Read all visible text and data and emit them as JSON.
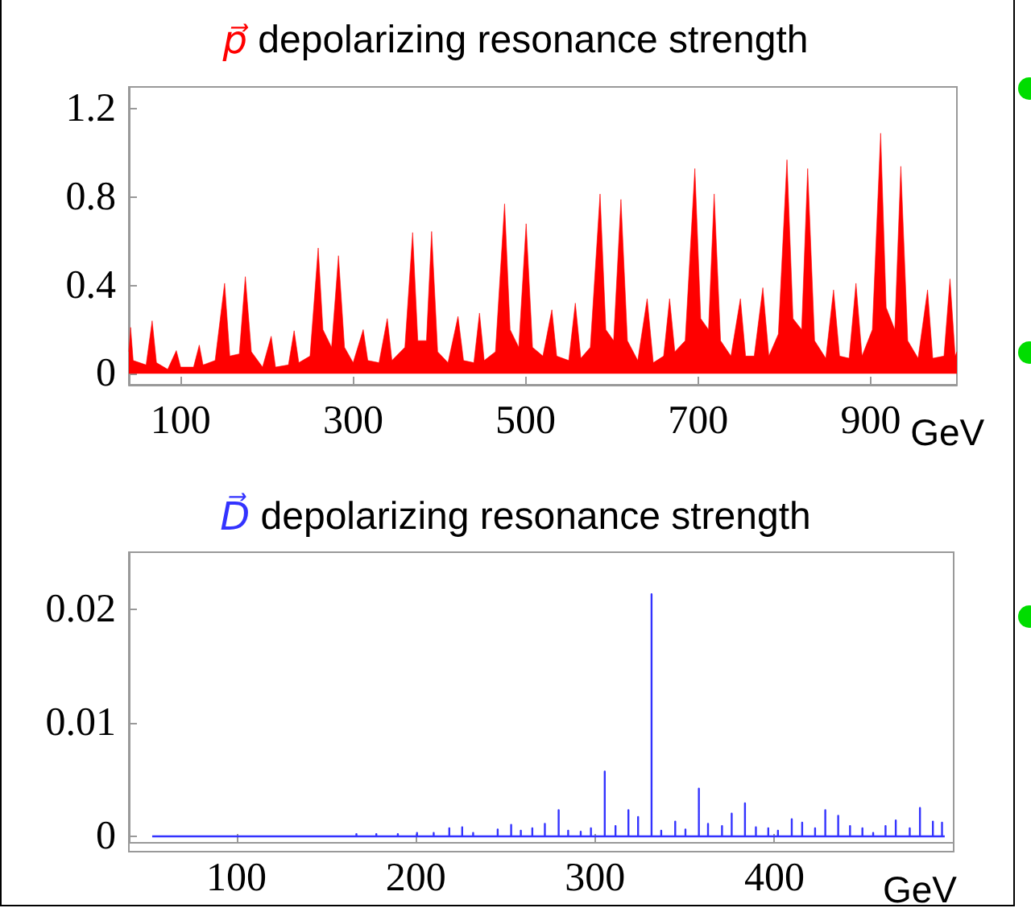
{
  "chart_data": [
    {
      "type": "area",
      "title": "p⃗ depolarizing resonance strength",
      "color": "#ff0000",
      "xlabel": "GeV",
      "xlim": [
        40,
        1000
      ],
      "xticks": [
        100,
        300,
        500,
        700,
        900
      ],
      "ylim": [
        -0.05,
        1.3
      ],
      "yticks": [
        0,
        0.4,
        0.8,
        1.2
      ],
      "x": [
        40,
        42,
        45,
        60,
        67,
        72,
        85,
        95,
        100,
        115,
        121.6,
        126,
        140,
        151,
        157,
        168,
        175,
        182,
        195,
        205,
        210,
        225,
        231.6,
        237,
        250,
        259.5,
        265,
        275,
        283,
        290,
        300,
        311.7,
        317,
        330,
        339.6,
        345,
        360,
        369,
        375,
        385,
        391,
        398,
        410,
        421.6,
        428,
        440,
        446.5,
        452,
        465,
        475.6,
        482,
        492,
        500.6,
        508,
        520,
        530.4,
        536,
        550,
        557.6,
        564,
        575,
        586.3,
        593,
        602,
        610.5,
        618,
        630,
        640.9,
        648,
        660,
        666.9,
        673,
        685,
        696.2,
        703,
        712,
        718.6,
        726,
        738,
        749,
        755,
        765,
        775,
        782,
        793,
        803,
        810,
        820,
        827,
        835,
        848,
        857,
        864,
        875,
        883,
        890,
        902,
        911.6,
        918,
        928,
        935,
        943,
        955,
        966,
        972,
        985,
        992,
        998,
        1000
      ],
      "values": [
        0.1,
        0.21,
        0.06,
        0.04,
        0.24,
        0.05,
        0.02,
        0.105,
        0.03,
        0.03,
        0.13,
        0.04,
        0.06,
        0.41,
        0.08,
        0.09,
        0.44,
        0.1,
        0.03,
        0.17,
        0.03,
        0.04,
        0.195,
        0.05,
        0.08,
        0.57,
        0.2,
        0.12,
        0.535,
        0.12,
        0.05,
        0.2,
        0.06,
        0.05,
        0.25,
        0.06,
        0.12,
        0.64,
        0.15,
        0.15,
        0.645,
        0.1,
        0.05,
        0.26,
        0.06,
        0.05,
        0.275,
        0.06,
        0.1,
        0.77,
        0.2,
        0.12,
        0.68,
        0.12,
        0.08,
        0.29,
        0.08,
        0.06,
        0.32,
        0.07,
        0.12,
        0.815,
        0.2,
        0.15,
        0.79,
        0.15,
        0.06,
        0.34,
        0.05,
        0.08,
        0.34,
        0.1,
        0.15,
        0.93,
        0.25,
        0.2,
        0.815,
        0.15,
        0.08,
        0.34,
        0.08,
        0.08,
        0.39,
        0.08,
        0.18,
        0.97,
        0.25,
        0.2,
        0.93,
        0.15,
        0.07,
        0.38,
        0.08,
        0.07,
        0.41,
        0.08,
        0.2,
        1.09,
        0.3,
        0.2,
        0.94,
        0.15,
        0.07,
        0.38,
        0.07,
        0.08,
        0.43,
        0.08,
        0.1
      ]
    },
    {
      "type": "line",
      "title": "D⃗ depolarizing resonance strength",
      "color": "#3333ff",
      "xlabel": "GeV",
      "xlim": [
        40,
        500
      ],
      "xticks": [
        100,
        200,
        300,
        400
      ],
      "ylim": [
        -0.0005,
        0.025
      ],
      "yticks": [
        0,
        0.01,
        0.02
      ],
      "x": [
        53,
        60,
        60,
        60,
        75,
        75,
        75,
        90,
        90,
        90,
        105,
        105,
        105,
        118,
        118,
        118,
        130,
        130,
        130,
        142,
        142,
        142,
        155,
        155,
        155,
        166.9,
        166.9,
        166.9,
        178,
        178,
        178,
        190,
        190,
        190,
        200.7,
        200.7,
        200.7,
        210,
        210,
        210,
        218.7,
        218.7,
        218.7,
        225.9,
        225.9,
        225.9,
        232,
        232,
        232,
        245.7,
        245.7,
        245.7,
        253.2,
        253.2,
        253.2,
        258.6,
        258.6,
        258.6,
        265,
        265,
        265,
        272,
        272,
        272,
        279.7,
        279.7,
        279.7,
        285,
        285,
        285,
        292,
        292,
        292,
        297.7,
        297.7,
        297.7,
        305.4,
        305.4,
        305.4,
        311.4,
        311.4,
        311.4,
        318.6,
        318.6,
        318.6,
        324,
        324,
        324,
        331.5,
        331.5,
        331.5,
        336.9,
        336.9,
        336.9,
        344.7,
        344.7,
        344.7,
        350.4,
        350.4,
        350.4,
        357.9,
        357.9,
        357.9,
        363,
        363,
        363,
        370.8,
        370.8,
        370.8,
        376.2,
        376.2,
        376.2,
        383.6,
        383.6,
        383.6,
        389.7,
        389.7,
        389.7,
        396.6,
        396.6,
        396.6,
        402,
        402,
        402,
        409.7,
        409.7,
        409.7,
        415.5,
        415.5,
        415.5,
        422.7,
        422.7,
        422.7,
        428.4,
        428.4,
        428.4,
        435.6,
        435.6,
        435.6,
        442.2,
        442.2,
        442.2,
        449.1,
        449.1,
        449.1,
        455.1,
        455.1,
        455.1,
        462,
        462,
        462,
        467.7,
        467.7,
        467.7,
        475.5,
        475.5,
        475.5,
        481.2,
        481.2,
        481.2,
        488.4,
        488.4,
        488.4,
        493.5,
        493.5,
        493.5,
        495
      ],
      "values": [
        0,
        0,
        0.0001,
        0,
        0,
        0.0001,
        0,
        0,
        0.0001,
        0,
        0,
        0.0001,
        0,
        0,
        0.0001,
        0,
        0,
        0.0001,
        0,
        0,
        0.0001,
        0,
        0,
        0.0001,
        0,
        0,
        0.0002,
        0,
        0,
        0.0002,
        0,
        0,
        0.0002,
        0,
        0,
        0.0003,
        0,
        0,
        0.0003,
        0,
        0,
        0.0007,
        0,
        0,
        0.0008,
        0,
        0,
        0.0003,
        0,
        0,
        0.0006,
        0,
        0,
        0.001,
        0,
        0,
        0.0005,
        0,
        0,
        0.0007,
        0,
        0,
        0.0011,
        0,
        0,
        0.0023,
        0,
        0,
        0.0005,
        0,
        0,
        0.0004,
        0,
        0,
        0.0007,
        0,
        0,
        0.0057,
        0,
        0,
        0.0009,
        0,
        0,
        0.0023,
        0,
        0,
        0.0017,
        0,
        0,
        0.0213,
        0,
        0,
        0.0005,
        0,
        0,
        0.0013,
        0,
        0,
        0.0006,
        0,
        0,
        0.0042,
        0,
        0,
        0.0011,
        0,
        0,
        0.0009,
        0,
        0,
        0.002,
        0,
        0,
        0.0029,
        0,
        0,
        0.0008,
        0,
        0,
        0.0007,
        0,
        0,
        0.0005,
        0,
        0,
        0.0015,
        0,
        0,
        0.0012,
        0,
        0,
        0.0007,
        0,
        0,
        0.0023,
        0,
        0,
        0.0018,
        0,
        0,
        0.0009,
        0,
        0,
        0.0007,
        0,
        0,
        0.0003,
        0,
        0,
        0.0009,
        0,
        0,
        0.0014,
        0,
        0,
        0.0007,
        0,
        0,
        0.0025,
        0,
        0,
        0.0013,
        0,
        0,
        0.0012,
        0,
        0
      ]
    }
  ]
}
